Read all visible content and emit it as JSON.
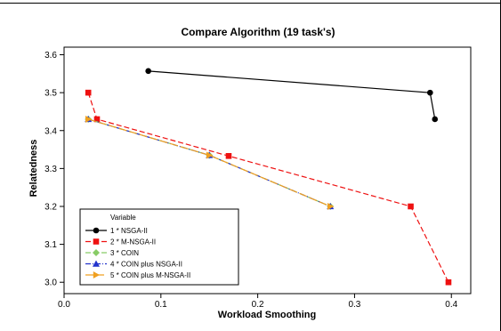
{
  "chart_data": {
    "type": "line",
    "title": "Compare Algorithm (19 task's)",
    "xlabel": "Workload Smoothing",
    "ylabel": "Relatedness",
    "xlim": [
      0.0,
      0.42
    ],
    "ylim": [
      2.97,
      3.62
    ],
    "x_ticks": [
      "0.0",
      "0.1",
      "0.2",
      "0.3",
      "0.4"
    ],
    "y_ticks": [
      "3.0",
      "3.1",
      "3.2",
      "3.3",
      "3.4",
      "3.5",
      "3.6"
    ],
    "grid": false,
    "legend": {
      "title": "Variable",
      "position": "bottom-left"
    },
    "series": [
      {
        "name": "1 * NSGA-II",
        "color": "#000000",
        "marker": "circle",
        "dash": "solid",
        "points": [
          [
            0.087,
            3.557
          ],
          [
            0.378,
            3.5
          ],
          [
            0.383,
            3.43
          ]
        ]
      },
      {
        "name": "2 * M-NSGA-II",
        "color": "#ee1111",
        "marker": "square",
        "dash": "dashed",
        "points": [
          [
            0.025,
            3.5
          ],
          [
            0.034,
            3.43
          ],
          [
            0.17,
            3.333
          ],
          [
            0.358,
            3.2
          ],
          [
            0.397,
            3.0
          ]
        ]
      },
      {
        "name": "3 * COIN",
        "color": "#88cc66",
        "marker": "diamond",
        "dash": "dashed",
        "points": [
          [
            0.025,
            3.43
          ],
          [
            0.15,
            3.335
          ],
          [
            0.275,
            3.2
          ]
        ]
      },
      {
        "name": "4 * COIN plus NSGA-II",
        "color": "#2233cc",
        "marker": "triangle-up",
        "dash": "dashdot",
        "points": [
          [
            0.025,
            3.43
          ],
          [
            0.15,
            3.335
          ],
          [
            0.275,
            3.2
          ]
        ]
      },
      {
        "name": "5 * COIN plus M-NSGA-II",
        "color": "#f0a020",
        "marker": "triangle-right",
        "dash": "longdash",
        "points": [
          [
            0.025,
            3.43
          ],
          [
            0.15,
            3.335
          ],
          [
            0.275,
            3.2
          ]
        ]
      }
    ]
  }
}
